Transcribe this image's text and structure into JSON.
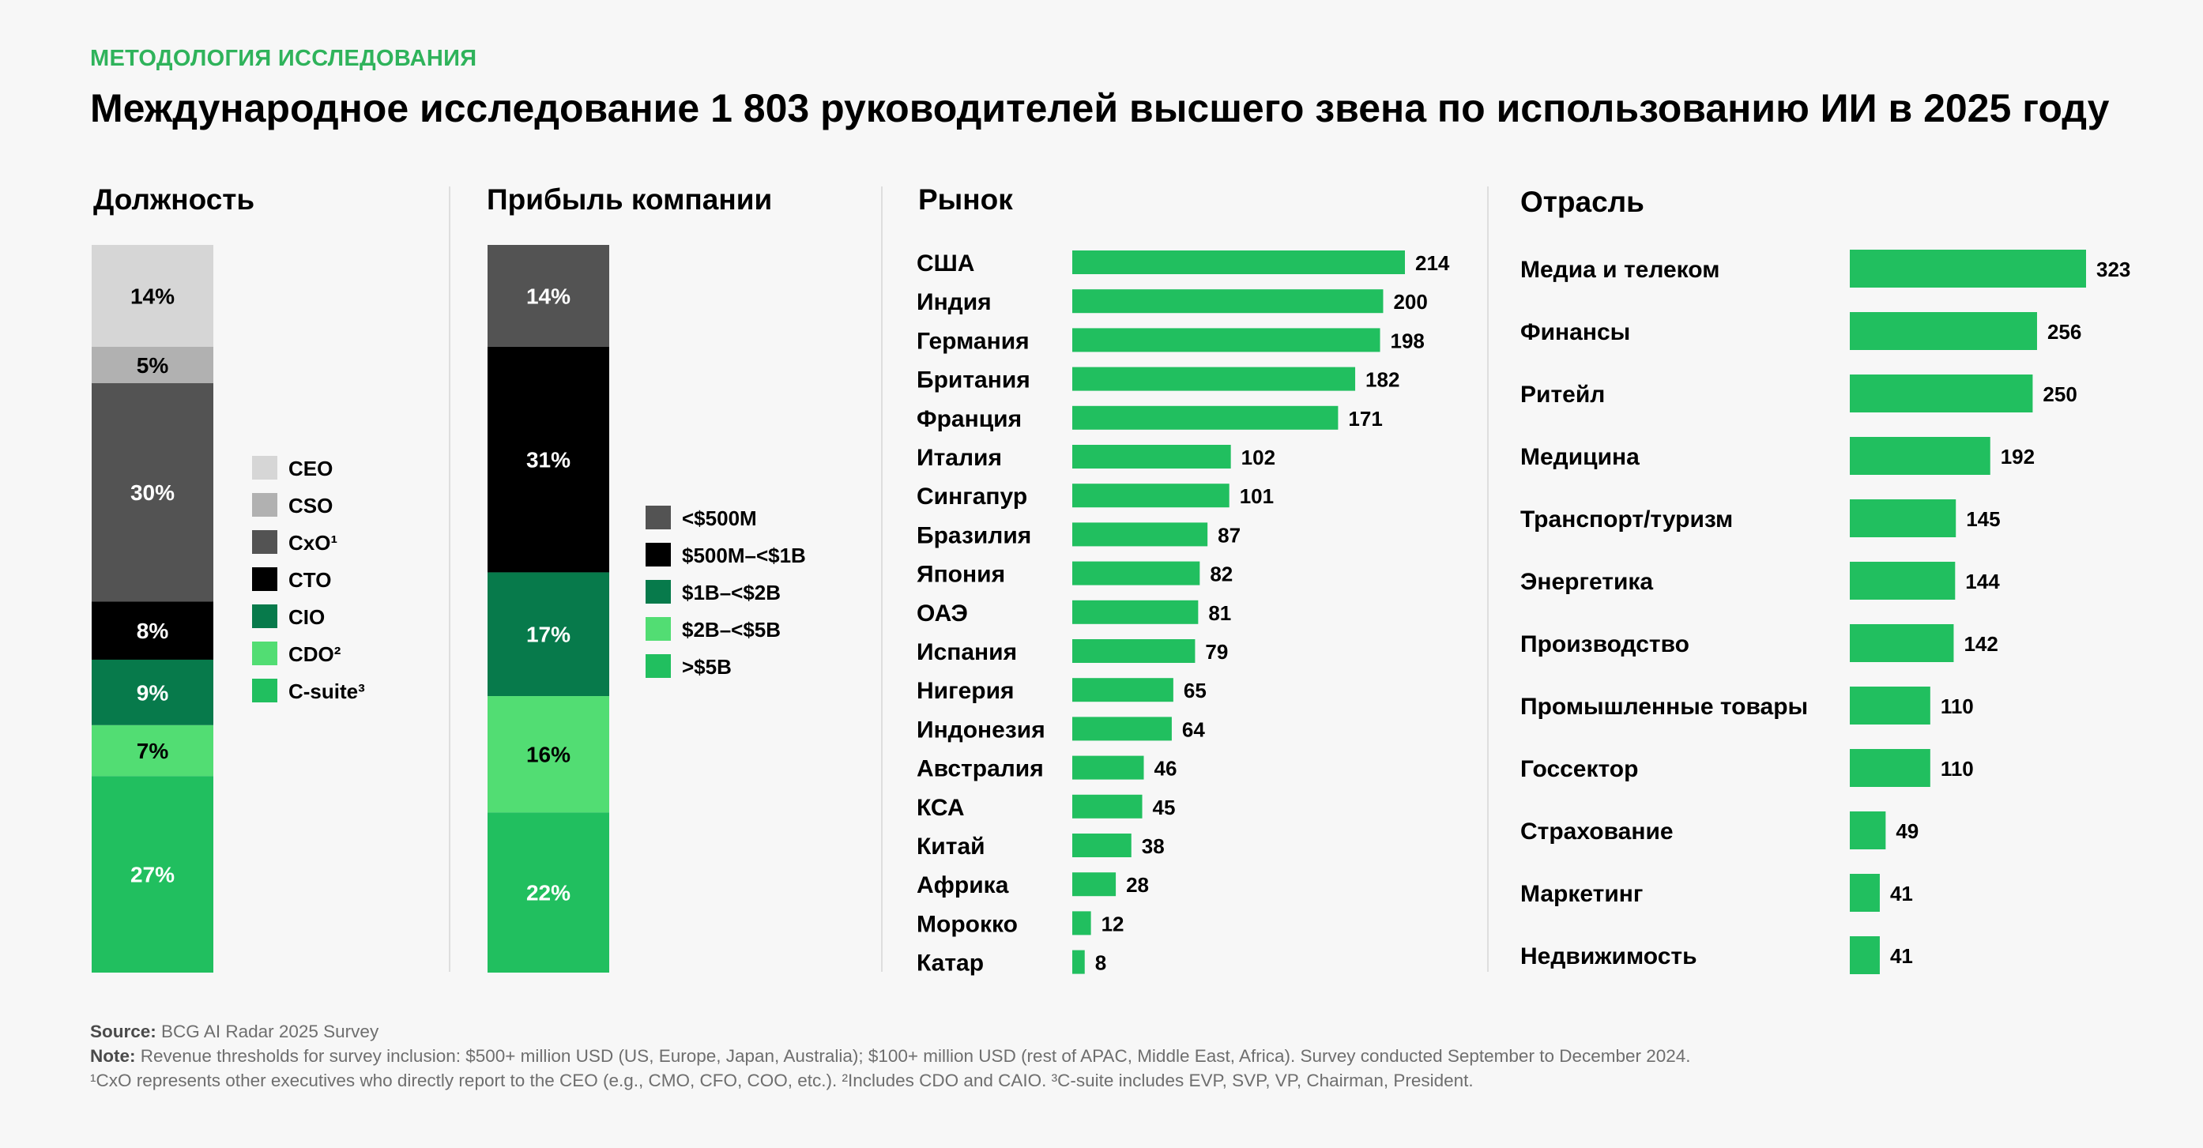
{
  "header": {
    "eyebrow": "МЕТОДОЛОГИЯ ИССЛЕДОВАНИЯ",
    "title": "Международное исследование 1 803 руководителей высшего звена по использованию ИИ в 2025 году"
  },
  "footnotes": {
    "source_label": "Source:",
    "source_text": "BCG AI Radar 2025 Survey",
    "note_label": "Note:",
    "note_text": "Revenue thresholds for survey inclusion: $500+ million USD (US, Europe, Japan, Australia); $100+ million USD (rest of APAC, Middle East, Africa). Survey conducted September to December 2024.",
    "definitions": "¹CxO represents other executives who directly report to the CEO (e.g., CMO, CFO, COO, etc.). ²Includes CDO and CAIO. ³C-suite includes EVP, SVP, VP, Chairman, President."
  },
  "colors": {
    "accent_green": "#2fb35b",
    "bar_green": "#21bf5f"
  },
  "chart_data": [
    {
      "type": "stacked-bar",
      "title": "Должность",
      "unit": "%",
      "series": [
        {
          "name": "CEO",
          "value": 14,
          "label": "14%",
          "color": "#d6d6d6",
          "text_color": "#000000"
        },
        {
          "name": "CSO",
          "value": 5,
          "label": "5%",
          "color": "#b1b1b1",
          "text_color": "#000000"
        },
        {
          "name": "CxO¹",
          "value": 30,
          "label": "30%",
          "color": "#535353",
          "text_color": "#ffffff"
        },
        {
          "name": "CTO",
          "value": 8,
          "label": "8%",
          "color": "#000000",
          "text_color": "#ffffff"
        },
        {
          "name": "CIO",
          "value": 9,
          "label": "9%",
          "color": "#077a4b",
          "text_color": "#ffffff"
        },
        {
          "name": "CDO²",
          "value": 7,
          "label": "7%",
          "color": "#52dd73",
          "text_color": "#000000"
        },
        {
          "name": "C-suite³",
          "value": 27,
          "label": "27%",
          "color": "#21bf5f",
          "text_color": "#ffffff"
        }
      ]
    },
    {
      "type": "stacked-bar",
      "title": "Прибыль компании",
      "unit": "%",
      "series": [
        {
          "name": "<$500M",
          "value": 14,
          "label": "14%",
          "color": "#535353",
          "text_color": "#ffffff"
        },
        {
          "name": "$500M–<$1B",
          "value": 31,
          "label": "31%",
          "color": "#000000",
          "text_color": "#ffffff"
        },
        {
          "name": "$1B–<$2B",
          "value": 17,
          "label": "17%",
          "color": "#077a4b",
          "text_color": "#ffffff"
        },
        {
          "name": "$2B–<$5B",
          "value": 16,
          "label": "16%",
          "color": "#52dd73",
          "text_color": "#000000"
        },
        {
          "name": ">$5B",
          "value": 22,
          "label": "22%",
          "color": "#21bf5f",
          "text_color": "#ffffff"
        }
      ]
    },
    {
      "type": "bar",
      "orientation": "horizontal",
      "title": "Рынок",
      "categories": [
        "США",
        "Индия",
        "Германия",
        "Британия",
        "Франция",
        "Италия",
        "Сингапур",
        "Бразилия",
        "Япония",
        "ОАЭ",
        "Испания",
        "Нигерия",
        "Индонезия",
        "Австралия",
        "КСА",
        "Китай",
        "Африка",
        "Морокко",
        "Катар"
      ],
      "values": [
        214,
        200,
        198,
        182,
        171,
        102,
        101,
        87,
        82,
        81,
        79,
        65,
        64,
        46,
        45,
        38,
        28,
        12,
        8
      ]
    },
    {
      "type": "bar",
      "orientation": "horizontal",
      "title": "Отрасль",
      "categories": [
        "Медиа и телеком",
        "Финансы",
        "Ритейл",
        "Медицина",
        "Транспорт/туризм",
        "Энергетика",
        "Производство",
        "Промышленные товары",
        "Госсектор",
        "Страхование",
        "Маркетинг",
        "Недвижимость"
      ],
      "values": [
        323,
        256,
        250,
        192,
        145,
        144,
        142,
        110,
        110,
        49,
        41,
        41
      ]
    }
  ]
}
